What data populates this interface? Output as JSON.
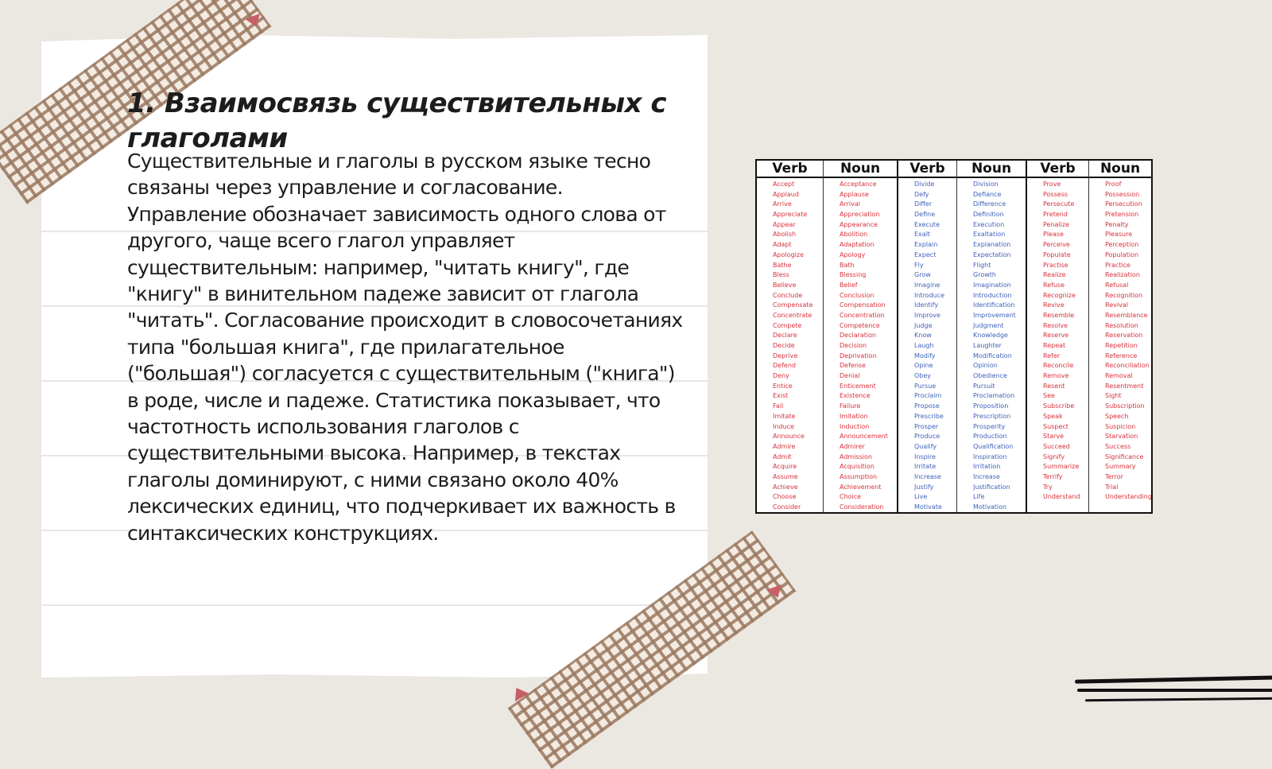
{
  "slide": {
    "title": "1. Взаимосвязь существительных с глаголами",
    "body": "Существительные и глаголы в русском языке тесно связаны через управление и согласование. Управление обозначает зависимость одного слова от другого, чаще всего глагол управляет существительным: например, \"читать книгу\", где \"книгу\" в винительном падеже зависит от глагола \"читать\". Согласование происходит в словосочетаниях типа \"большая книга\", где прилагательное (\"большая\") согласуется с существительным (\"книга\") в роде, числе и падеже. Статистика показывает, что частотность использования глаголов с существительными высока. Например, в текстах глаголы доминируют, с ними связано около 40% лексических единиц, что подчеркивает их важность в синтаксических конструкциях."
  },
  "vocab_table": {
    "columns": [
      {
        "header": "Verb",
        "items": [
          "Accept",
          "Applaud",
          "Arrive",
          "Appreciate",
          "Appear",
          "Abolish",
          "Adapt",
          "Apologize",
          "Bathe",
          "Bless",
          "Believe",
          "Conclude",
          "Compensate",
          "Concentrate",
          "Compete",
          "Declare",
          "Decide",
          "Deprive",
          "Defend",
          "Deny",
          "Entice",
          "Exist",
          "Fail",
          "Imitate",
          "Induce",
          "Announce",
          "Admire",
          "Admit",
          "Acquire",
          "Assume",
          "Achieve",
          "Choose",
          "Consider"
        ]
      },
      {
        "header": "Noun",
        "items": [
          "Acceptance",
          "Applause",
          "Arrival",
          "Appreciation",
          "Appearance",
          "Abolition",
          "Adaptation",
          "Apology",
          "Bath",
          "Blessing",
          "Belief",
          "Conclusion",
          "Compensation",
          "Concentration",
          "Competence",
          "Declaration",
          "Decision",
          "Deprivation",
          "Defense",
          "Denial",
          "Enticement",
          "Existence",
          "Failure",
          "Imitation",
          "Induction",
          "Announcement",
          "Admirer",
          "Admission",
          "Acquisition",
          "Assumption",
          "Achievement",
          "Choice",
          "Consideration"
        ]
      },
      {
        "header": "Verb",
        "items": [
          "Divide",
          "Defy",
          "Differ",
          "Define",
          "Execute",
          "Exalt",
          "Explain",
          "Expect",
          "Fly",
          "Grow",
          "Imagine",
          "Introduce",
          "Identify",
          "Improve",
          "Judge",
          "Know",
          "Laugh",
          "Modify",
          "Opine",
          "Obey",
          "Pursue",
          "Proclaim",
          "Propose",
          "Prescribe",
          "Prosper",
          "Produce",
          "Qualify",
          "Inspire",
          "Irritate",
          "Increase",
          "Justify",
          "Live",
          "Motivate"
        ]
      },
      {
        "header": "Noun",
        "items": [
          "Division",
          "Defiance",
          "Difference",
          "Definition",
          "Execution",
          "Exaltation",
          "Explanation",
          "Expectation",
          "Flight",
          "Growth",
          "Imagination",
          "Introduction",
          "Identification",
          "Improvement",
          "Judgment",
          "Knowledge",
          "Laughter",
          "Modification",
          "Opinion",
          "Obedience",
          "Pursuit",
          "Proclamation",
          "Proposition",
          "Prescription",
          "Prosperity",
          "Production",
          "Qualification",
          "Inspiration",
          "Irritation",
          "Increase",
          "Justification",
          "Life",
          "Motivation"
        ]
      },
      {
        "header": "Verb",
        "items": [
          "Prove",
          "Possess",
          "Persecute",
          "Pretend",
          "Penalize",
          "Please",
          "Perceive",
          "Populate",
          "Practise",
          "Realize",
          "Refuse",
          "Recognize",
          "Revive",
          "Resemble",
          "Resolve",
          "Reserve",
          "Repeat",
          "Refer",
          "Reconcile",
          "Remove",
          "Resent",
          "See",
          "Subscribe",
          "Speak",
          "Suspect",
          "Starve",
          "Succeed",
          "Signify",
          "Summarize",
          "Terrify",
          "Try",
          "Understand"
        ]
      },
      {
        "header": "Noun",
        "items": [
          "Proof",
          "Possession",
          "Persecution",
          "Pretension",
          "Penalty",
          "Pleasure",
          "Perception",
          "Population",
          "Practice",
          "Realization",
          "Refusal",
          "Recognition",
          "Revival",
          "Resemblance",
          "Resolution",
          "Reservation",
          "Repetition",
          "Reference",
          "Reconciliation",
          "Removal",
          "Resentment",
          "Sight",
          "Subscription",
          "Speech",
          "Suspicion",
          "Starvation",
          "Success",
          "Significance",
          "Summary",
          "Terror",
          "Trial",
          "Understanding"
        ]
      }
    ]
  }
}
